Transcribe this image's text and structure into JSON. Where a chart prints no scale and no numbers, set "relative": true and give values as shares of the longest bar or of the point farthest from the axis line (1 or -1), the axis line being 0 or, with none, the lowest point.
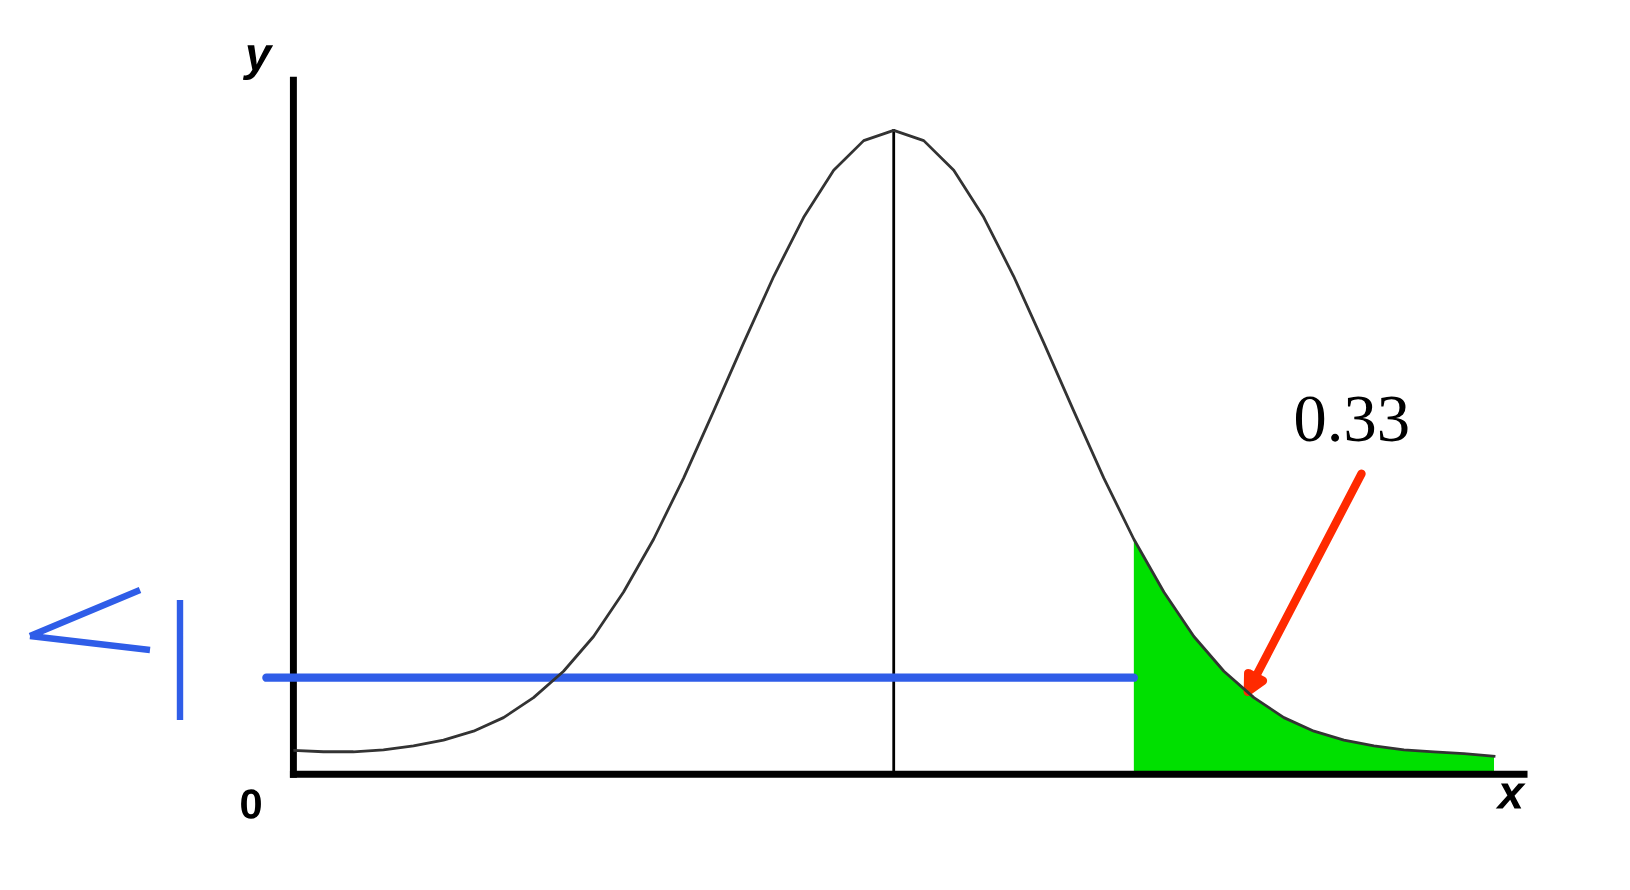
{
  "chart_data": {
    "type": "line",
    "xlabel": "x",
    "ylabel": "y",
    "relative": true,
    "legend": false,
    "marker": "none",
    "line_style": "solid",
    "categories": [
      null,
      null,
      null,
      null,
      null,
      null,
      null,
      null,
      null,
      null,
      null,
      null,
      null,
      null,
      null,
      null,
      null,
      null,
      null,
      null,
      null,
      null,
      null,
      null,
      null,
      null,
      null,
      null,
      null,
      null,
      null,
      null,
      null,
      null,
      null,
      null,
      null,
      null,
      null,
      null,
      null
    ],
    "series": [
      {
        "color": "#333333",
        "values": [
          0.037,
          0.035,
          0.035,
          0.038,
          0.044,
          0.053,
          0.067,
          0.088,
          0.119,
          0.16,
          0.214,
          0.283,
          0.365,
          0.46,
          0.564,
          0.67,
          0.773,
          0.865,
          0.938,
          0.984,
          1.0,
          0.984,
          0.938,
          0.865,
          0.773,
          0.67,
          0.564,
          0.46,
          0.365,
          0.283,
          0.214,
          0.16,
          0.119,
          0.088,
          0.067,
          0.053,
          0.044,
          0.038,
          0.035,
          0.032,
          0.028
        ]
      },
      {
        "type": "area",
        "color": "#00e000",
        "values": [
          null,
          null,
          null,
          null,
          null,
          null,
          null,
          null,
          null,
          null,
          null,
          null,
          null,
          null,
          null,
          null,
          null,
          null,
          null,
          null,
          null,
          null,
          null,
          null,
          null,
          null,
          null,
          null,
          0.365,
          0.283,
          0.214,
          0.16,
          0.119,
          0.088,
          0.067,
          0.053,
          0.044,
          0.038,
          0.035,
          0.032,
          0.028
        ]
      }
    ],
    "ref_lines": [
      {
        "axis": "y",
        "value": 0.15,
        "color": "#2f5de8"
      }
    ],
    "annotations": [
      "0.33",
      "0"
    ]
  }
}
